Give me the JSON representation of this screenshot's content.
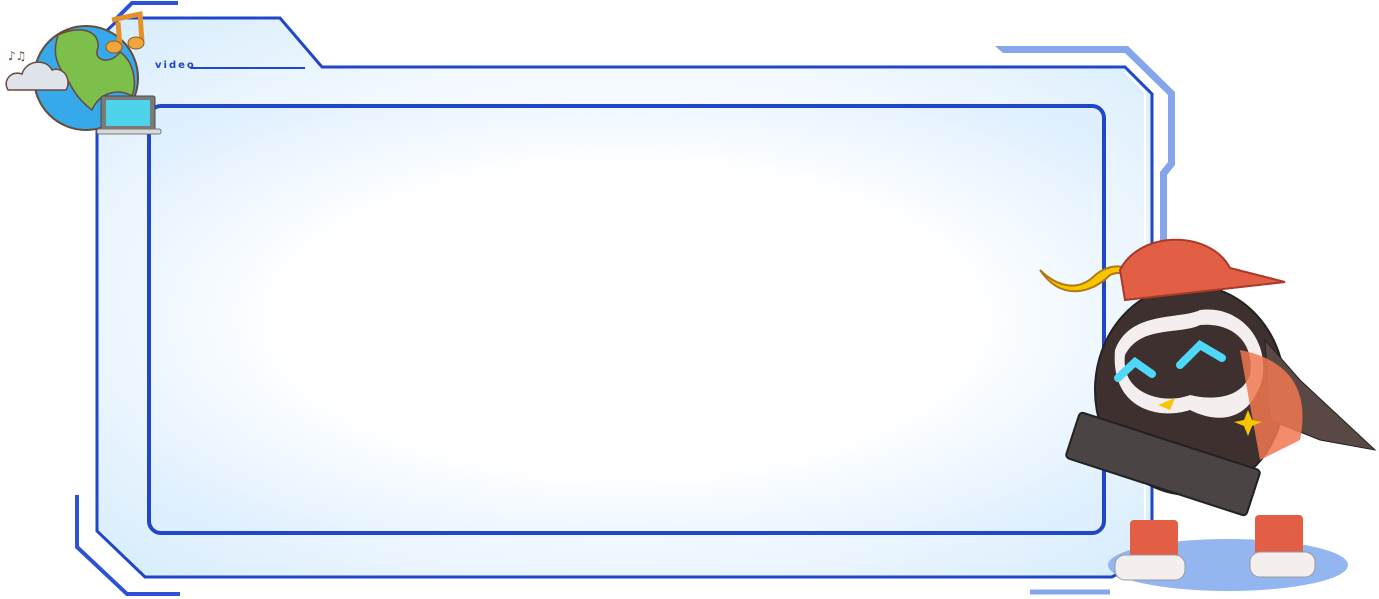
{
  "frame": {
    "label": "video",
    "colors": {
      "border": "#1f47c8",
      "accent": "#86a6ec",
      "fill": "#e3f2fd",
      "panel": "#ffffff"
    }
  },
  "decorations": {
    "top_left": [
      "globe-icon",
      "music-note-icon",
      "cloud-icon",
      "laptop-icon"
    ],
    "mascot": "penguin-with-keyboard"
  }
}
